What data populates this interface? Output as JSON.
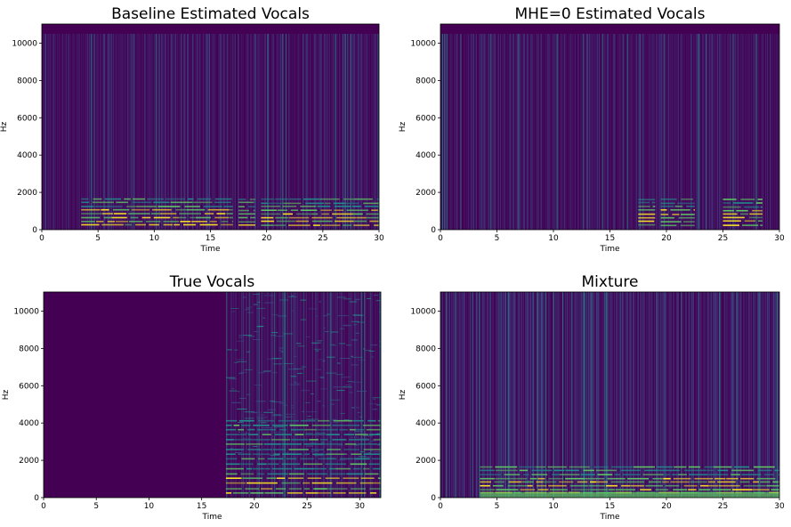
{
  "palette": {
    "background": "#440154",
    "low": "#3b528b",
    "mid": "#21918c",
    "high": "#5ec962",
    "peak": "#fde725"
  },
  "chart_data": [
    {
      "type": "heatmap",
      "title": "Baseline Estimated Vocals",
      "xlabel": "Time",
      "ylabel": "Hz",
      "xlim": [
        0,
        30
      ],
      "ylim": [
        0,
        11025
      ],
      "xticks": [
        0,
        5,
        10,
        15,
        20,
        25,
        30
      ],
      "yticks": [
        0,
        2000,
        4000,
        6000,
        8000,
        10000
      ],
      "colormap": "viridis",
      "vocal_segments": [
        [
          3.5,
          17
        ],
        [
          17.5,
          19
        ],
        [
          19.5,
          30
        ]
      ]
    },
    {
      "type": "heatmap",
      "title": "MHE=0 Estimated Vocals",
      "xlabel": "Time",
      "ylabel": "Hz",
      "xlim": [
        0,
        30
      ],
      "ylim": [
        0,
        11025
      ],
      "xticks": [
        0,
        5,
        10,
        15,
        20,
        25,
        30
      ],
      "yticks": [
        0,
        2000,
        4000,
        6000,
        8000,
        10000
      ],
      "colormap": "viridis",
      "vocal_segments": [
        [
          17.5,
          19
        ],
        [
          19.5,
          22.5
        ],
        [
          25,
          28.5
        ]
      ]
    },
    {
      "type": "heatmap",
      "title": "True Vocals",
      "xlabel": "Time",
      "ylabel": "Hz",
      "xlim": [
        0,
        32
      ],
      "ylim": [
        0,
        11025
      ],
      "xticks": [
        0,
        5,
        10,
        15,
        20,
        25,
        30
      ],
      "yticks": [
        0,
        2000,
        4000,
        6000,
        8000,
        10000
      ],
      "colormap": "viridis",
      "vocal_segments": [
        [
          17.3,
          32
        ]
      ]
    },
    {
      "type": "heatmap",
      "title": "Mixture",
      "xlabel": "Time",
      "ylabel": "Hz",
      "xlim": [
        0,
        30
      ],
      "ylim": [
        0,
        11025
      ],
      "xticks": [
        0,
        5,
        10,
        15,
        20,
        25,
        30
      ],
      "yticks": [
        0,
        2000,
        4000,
        6000,
        8000,
        10000
      ],
      "colormap": "viridis",
      "vocal_segments": [
        [
          3.5,
          30
        ]
      ]
    }
  ]
}
